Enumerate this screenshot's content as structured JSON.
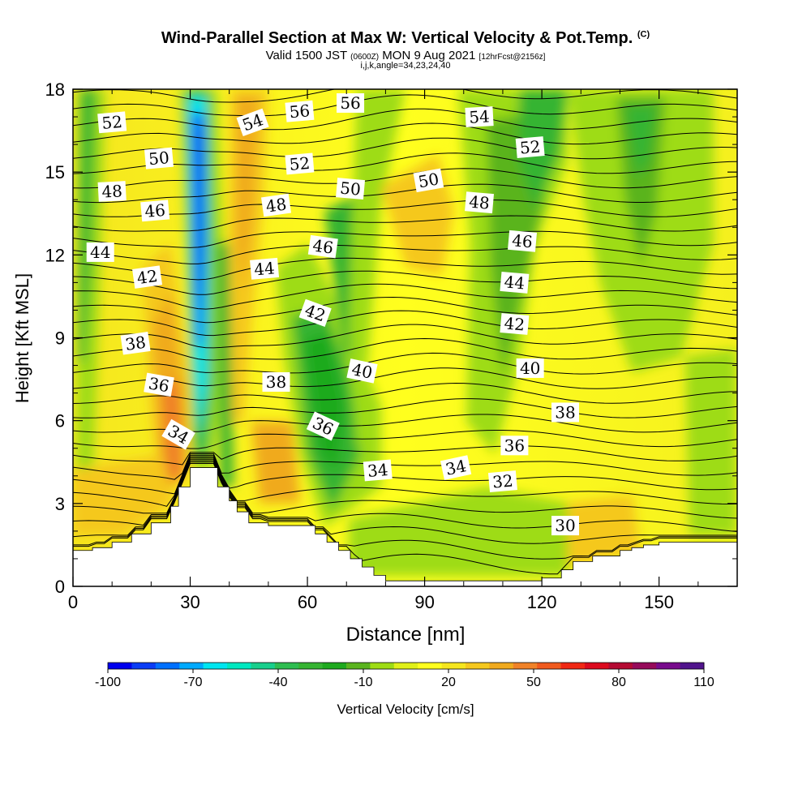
{
  "header": {
    "title": "Wind-Parallel Section at Max W: Vertical Velocity & Pot.Temp.",
    "title_tag": "(C)",
    "valid_prefix": "Valid 1500 JST",
    "valid_utc": "(0600Z)",
    "valid_date": "MON 9 Aug 2021",
    "forecast": "[12hrFcst@2156z]",
    "ijk": "i,j,k,angle=34,23,24,40"
  },
  "chart_data": {
    "type": "heatmap",
    "xlabel": "Distance [nm]",
    "ylabel": "Height [Kft MSL]",
    "xlim": [
      0,
      170
    ],
    "ylim": [
      0,
      18
    ],
    "xticks": [
      0,
      30,
      60,
      90,
      120,
      150
    ],
    "yticks": [
      0,
      3,
      6,
      9,
      12,
      15,
      18
    ],
    "colorbar": {
      "label": "Vertical Velocity [cm/s]",
      "tick_labels": [
        "-100",
        "-70",
        "-40",
        "-10",
        "20",
        "50",
        "80",
        "110"
      ],
      "colors": [
        "#0000ee",
        "#0a3cf5",
        "#0070ff",
        "#00aaff",
        "#00e6f0",
        "#00e8c0",
        "#18cf8c",
        "#2ebd50",
        "#36b432",
        "#1eaa1e",
        "#5ab41e",
        "#9edc14",
        "#e0f018",
        "#ffff1e",
        "#f5e61e",
        "#f5c81e",
        "#f0aa1e",
        "#f08228",
        "#f05a1e",
        "#f02814",
        "#dc0a1e",
        "#b40a32",
        "#960a5a",
        "#780a8c",
        "#50148c"
      ]
    },
    "terrain_profile": {
      "x": [
        0,
        5,
        10,
        15,
        20,
        25,
        27,
        30,
        35,
        37,
        40,
        42,
        45,
        50,
        60,
        62,
        65,
        68,
        71,
        74,
        77,
        80,
        90,
        100,
        110,
        120,
        125,
        128,
        133,
        140,
        143,
        146,
        150,
        160,
        170
      ],
      "height": [
        1.3,
        1.4,
        1.6,
        1.9,
        2.3,
        2.9,
        3.6,
        4.3,
        4.3,
        3.6,
        3.1,
        2.7,
        2.3,
        2.2,
        2.2,
        1.9,
        1.6,
        1.3,
        1.0,
        0.7,
        0.4,
        0.2,
        0.2,
        0.2,
        0.2,
        0.3,
        0.6,
        0.9,
        1.1,
        1.3,
        1.4,
        1.5,
        1.6,
        1.6,
        1.6
      ]
    },
    "theta_contour_labels": [
      {
        "text": "52",
        "x": 10,
        "y": 16.8,
        "angle": -5
      },
      {
        "text": "50",
        "x": 22,
        "y": 15.5,
        "angle": -5
      },
      {
        "text": "48",
        "x": 10,
        "y": 14.3,
        "angle": -3
      },
      {
        "text": "46",
        "x": 21,
        "y": 13.6,
        "angle": -5
      },
      {
        "text": "44",
        "x": 7,
        "y": 12.1,
        "angle": 0
      },
      {
        "text": "42",
        "x": 19,
        "y": 11.2,
        "angle": -8
      },
      {
        "text": "38",
        "x": 16,
        "y": 8.8,
        "angle": -8
      },
      {
        "text": "36",
        "x": 22,
        "y": 7.3,
        "angle": 10
      },
      {
        "text": "34",
        "x": 27,
        "y": 5.5,
        "angle": 30
      },
      {
        "text": "54",
        "x": 46,
        "y": 16.8,
        "angle": -20
      },
      {
        "text": "56",
        "x": 58,
        "y": 17.2,
        "angle": -5
      },
      {
        "text": "56",
        "x": 71,
        "y": 17.5,
        "angle": 0
      },
      {
        "text": "52",
        "x": 58,
        "y": 15.3,
        "angle": -5
      },
      {
        "text": "48",
        "x": 52,
        "y": 13.8,
        "angle": -8
      },
      {
        "text": "50",
        "x": 71,
        "y": 14.4,
        "angle": 5
      },
      {
        "text": "44",
        "x": 49,
        "y": 11.5,
        "angle": -5
      },
      {
        "text": "46",
        "x": 64,
        "y": 12.3,
        "angle": 8
      },
      {
        "text": "42",
        "x": 62,
        "y": 9.9,
        "angle": 20
      },
      {
        "text": "38",
        "x": 52,
        "y": 7.4,
        "angle": 0
      },
      {
        "text": "40",
        "x": 74,
        "y": 7.8,
        "angle": 12
      },
      {
        "text": "36",
        "x": 64,
        "y": 5.8,
        "angle": 25
      },
      {
        "text": "34",
        "x": 78,
        "y": 4.2,
        "angle": -5
      },
      {
        "text": "34",
        "x": 98,
        "y": 4.3,
        "angle": -12
      },
      {
        "text": "50",
        "x": 91,
        "y": 14.7,
        "angle": -10
      },
      {
        "text": "54",
        "x": 104,
        "y": 17.0,
        "angle": -3
      },
      {
        "text": "52",
        "x": 117,
        "y": 15.9,
        "angle": -5
      },
      {
        "text": "48",
        "x": 104,
        "y": 13.9,
        "angle": 5
      },
      {
        "text": "46",
        "x": 115,
        "y": 12.5,
        "angle": 5
      },
      {
        "text": "44",
        "x": 113,
        "y": 11.0,
        "angle": 5
      },
      {
        "text": "42",
        "x": 113,
        "y": 9.5,
        "angle": 5
      },
      {
        "text": "40",
        "x": 117,
        "y": 7.9,
        "angle": 0
      },
      {
        "text": "38",
        "x": 126,
        "y": 6.3,
        "angle": 0
      },
      {
        "text": "36",
        "x": 113,
        "y": 5.1,
        "angle": 0
      },
      {
        "text": "32",
        "x": 110,
        "y": 3.8,
        "angle": -5
      },
      {
        "text": "30",
        "x": 126,
        "y": 2.2,
        "angle": 0
      }
    ]
  }
}
